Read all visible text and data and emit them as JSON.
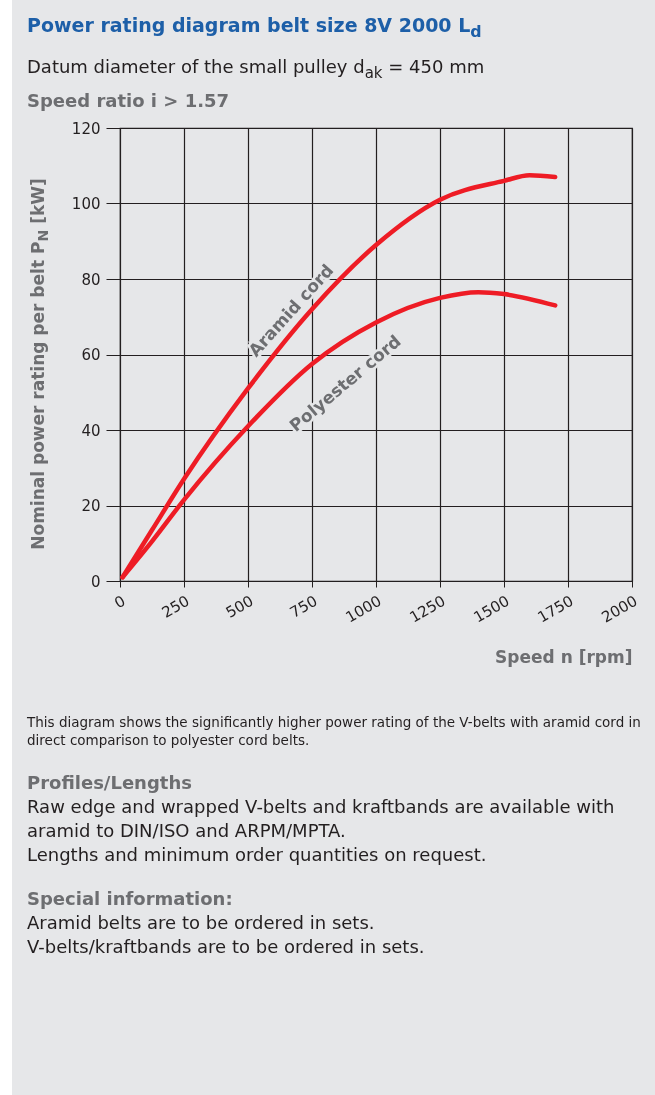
{
  "chart_data": {
    "type": "line",
    "title": "Power rating diagram belt size 8V 2000 L$_{d}$",
    "subtitle": "Datum diameter of the small pulley d$_{ak}$ = 450 mm",
    "xlabel": "Speed n [rpm]",
    "ylabel": "Nominal power rating per belt P$_{N}$ [kW]",
    "series": [
      {
        "name": "Aramid cord",
        "color": "#ee1c25",
        "x": [
          10,
          125,
          250,
          500,
          750,
          1000,
          1250,
          1500,
          1600,
          1700
        ],
        "values": [
          1,
          13.5,
          27,
          51,
          72,
          89,
          101,
          106,
          107.5,
          107
        ]
      },
      {
        "name": "Polyester cord",
        "color": "#ee1c25",
        "x": [
          10,
          125,
          250,
          500,
          750,
          1000,
          1250,
          1400,
          1500,
          1700
        ],
        "values": [
          1,
          10.5,
          21.5,
          41,
          57.5,
          68.5,
          75,
          76.5,
          76,
          73
        ]
      }
    ],
    "xlim": [
      0,
      2000
    ],
    "xticks": [
      0,
      250,
      500,
      750,
      1000,
      1250,
      1500,
      1750,
      2000
    ],
    "ylim": [
      0,
      120
    ],
    "yticks": [
      0,
      20,
      40,
      60,
      80,
      100,
      120
    ],
    "grid": true,
    "legend": false,
    "marker": "none",
    "line_style": "solid",
    "annotations": [
      "Speed ratio i > 1.57",
      "This diagram shows the significantly higher power rating of the V-belts with aramid cord in direct comparison to polyester cord belts.",
      "Profiles/Lengths",
      "Raw edge and wrapped V-belts and kraftbands are available with aramid to DIN/ISO and ARPM/MPTA.",
      "Lengths and minimum order quantities on request.",
      "Special information:",
      "Aramid belts are to be ordered in sets.",
      "V-belts/kraftbands are to be ordered in sets."
    ]
  }
}
